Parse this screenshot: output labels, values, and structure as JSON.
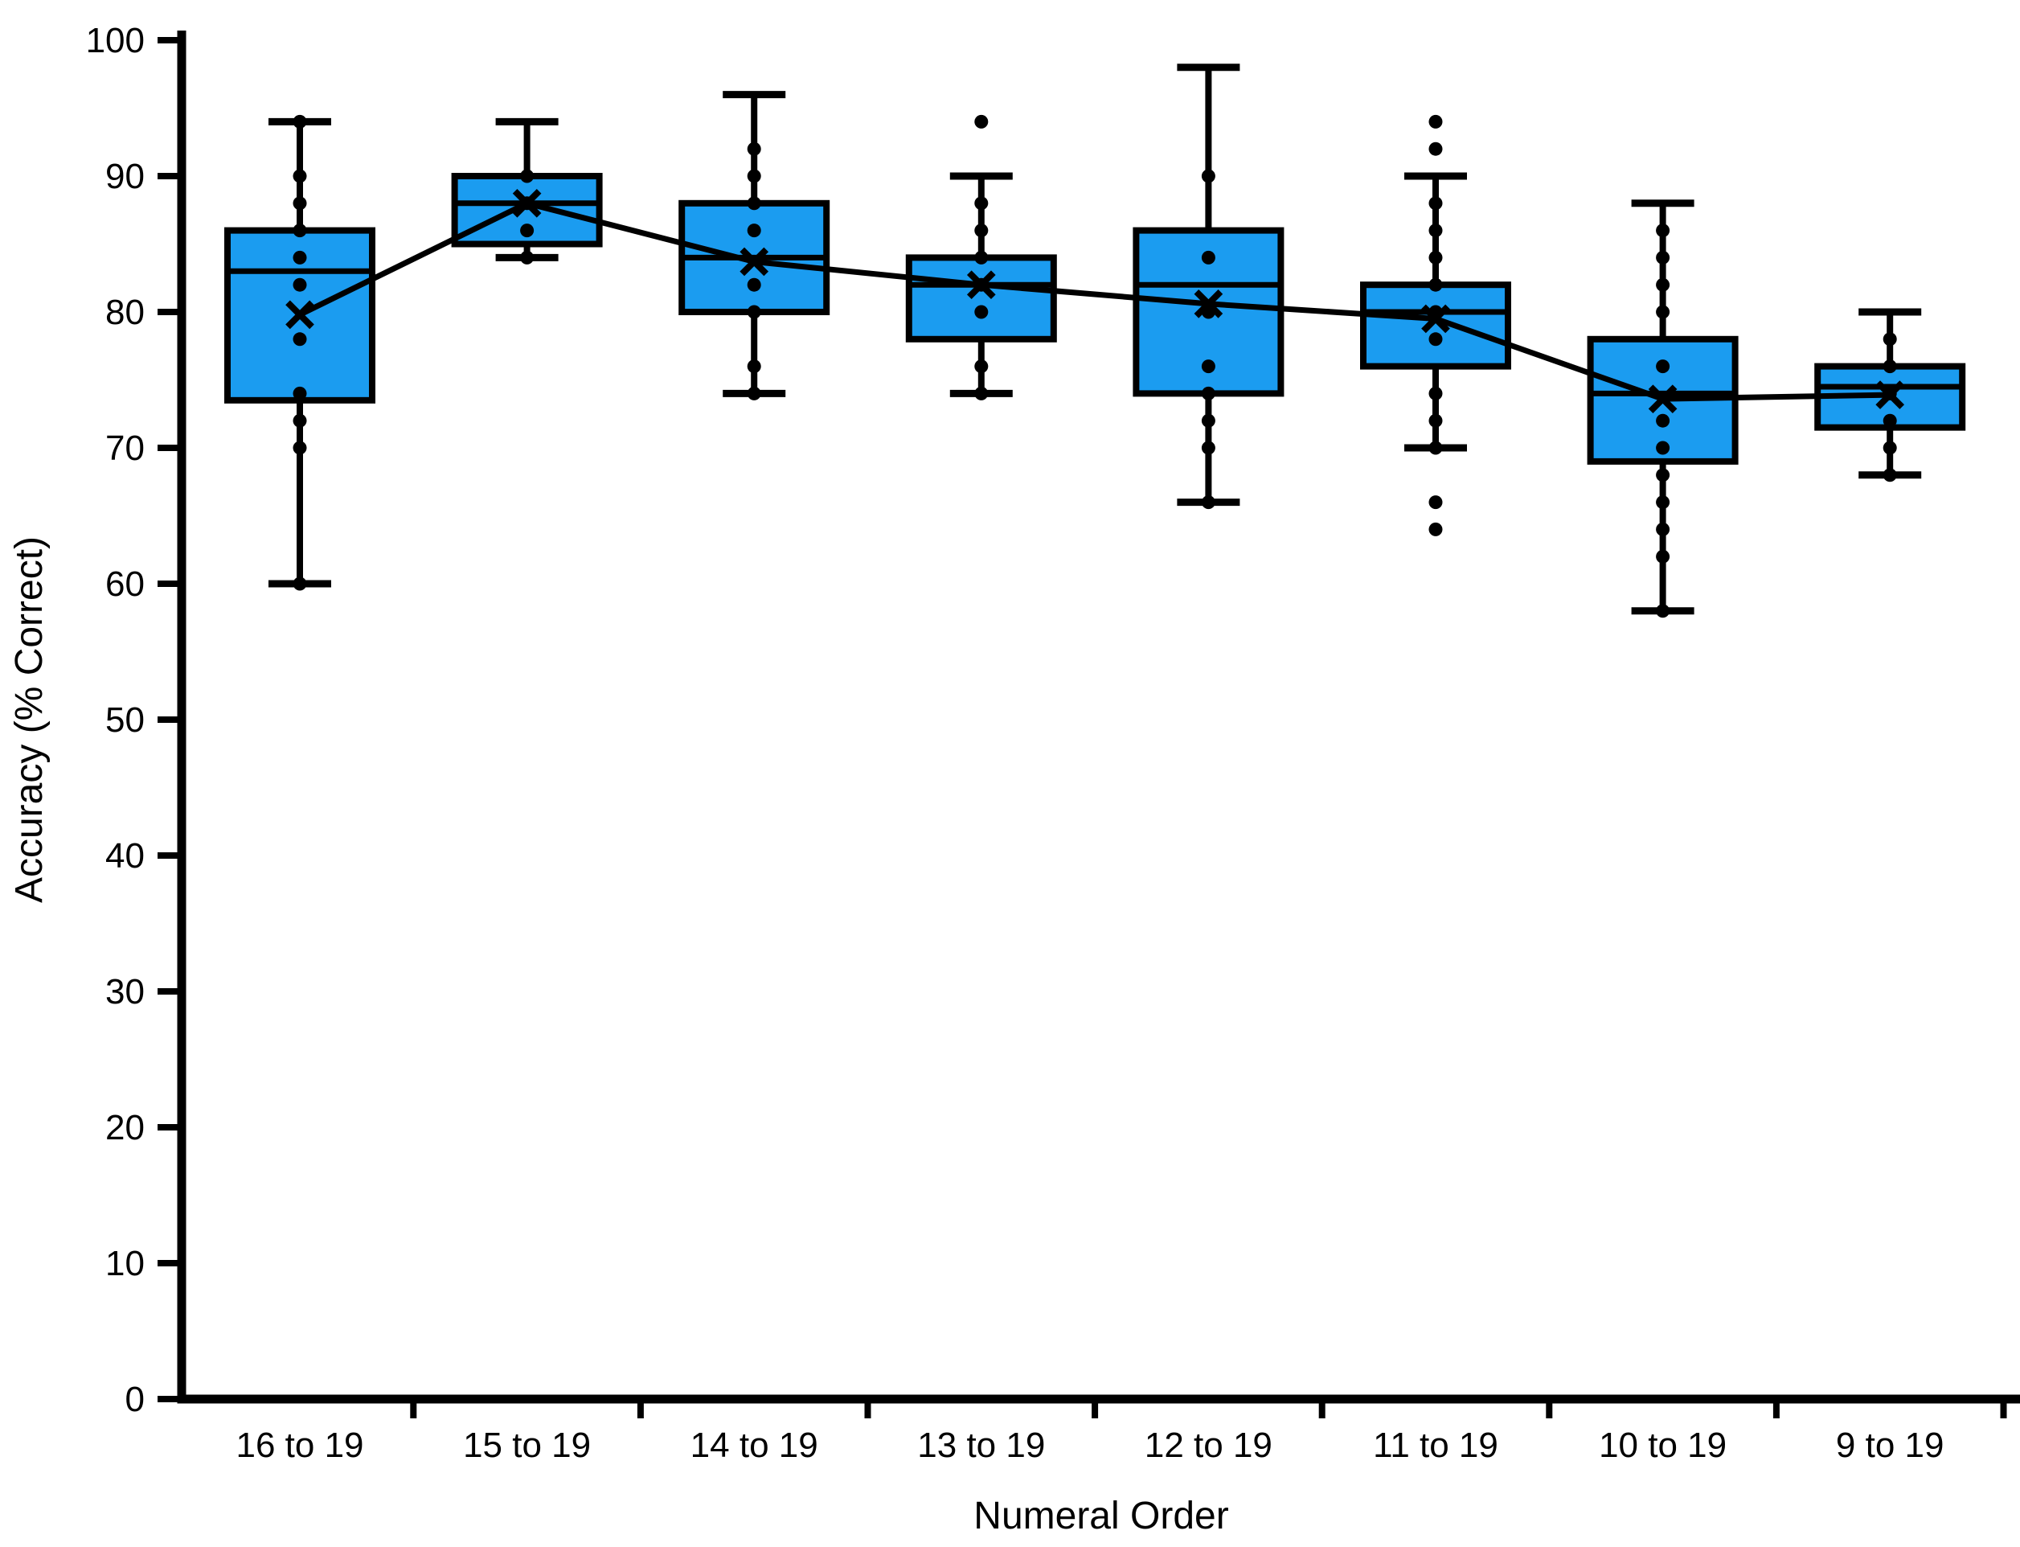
{
  "chart_data": {
    "type": "boxplot",
    "title": "",
    "xlabel": "Numeral Order",
    "ylabel": "Accuracy (% Correct)",
    "ylim": [
      0,
      100
    ],
    "yticks": [
      0,
      10,
      20,
      30,
      40,
      50,
      60,
      70,
      80,
      90,
      100
    ],
    "grid": false,
    "legend": false,
    "mean_line": true,
    "mean_marker": "x",
    "categories": [
      "16 to 19",
      "15 to 19",
      "14 to 19",
      "13 to 19",
      "12 to 19",
      "11 to 19",
      "10 to 19",
      "9 to 19"
    ],
    "series": [
      {
        "category": "16 to 19",
        "min": 60,
        "q1": 73.5,
        "median": 83,
        "q3": 86,
        "max": 94,
        "mean": 79.8,
        "points": [
          94,
          90,
          88,
          86,
          84,
          82,
          78,
          74,
          72,
          70,
          60
        ]
      },
      {
        "category": "15 to 19",
        "min": 84,
        "q1": 85,
        "median": 88,
        "q3": 90,
        "max": 94,
        "mean": 88.0,
        "points": [
          90,
          88,
          86,
          84
        ]
      },
      {
        "category": "14 to 19",
        "min": 74,
        "q1": 80,
        "median": 84,
        "q3": 88,
        "max": 96,
        "mean": 83.7,
        "points": [
          92,
          90,
          88,
          86,
          82,
          80,
          76,
          74
        ]
      },
      {
        "category": "13 to 19",
        "min": 74,
        "q1": 78,
        "median": 82,
        "q3": 84,
        "max": 90,
        "mean": 82.0,
        "points": [
          94,
          88,
          86,
          84,
          82,
          80,
          76,
          74
        ]
      },
      {
        "category": "12 to 19",
        "min": 66,
        "q1": 74,
        "median": 82,
        "q3": 86,
        "max": 98,
        "mean": 80.6,
        "points": [
          90,
          84,
          80,
          76,
          74,
          72,
          70,
          66
        ]
      },
      {
        "category": "11 to 19",
        "min": 70,
        "q1": 76,
        "median": 80,
        "q3": 82,
        "max": 90,
        "mean": 79.5,
        "points": [
          94,
          92,
          88,
          86,
          84,
          82,
          80,
          78,
          74,
          72,
          70,
          66,
          64
        ]
      },
      {
        "category": "10 to 19",
        "min": 58,
        "q1": 69,
        "median": 74,
        "q3": 78,
        "max": 88,
        "mean": 73.6,
        "points": [
          86,
          84,
          82,
          80,
          76,
          72,
          70,
          68,
          66,
          64,
          62,
          58
        ]
      },
      {
        "category": "9 to 19",
        "min": 68,
        "q1": 71.5,
        "median": 74.5,
        "q3": 76,
        "max": 80,
        "mean": 73.9,
        "points": [
          78,
          76,
          74,
          72,
          70,
          68
        ]
      }
    ]
  },
  "style": {
    "box_fill": "#1B9CF0",
    "line_color": "#000000",
    "background": "#FFFFFF"
  }
}
